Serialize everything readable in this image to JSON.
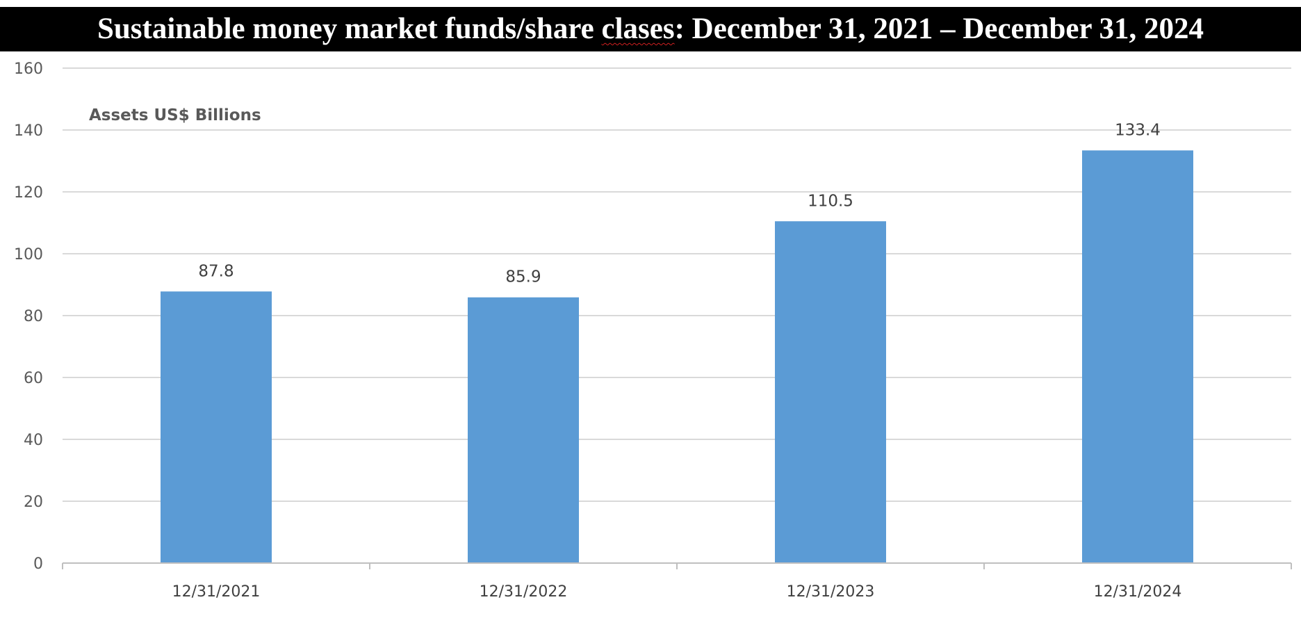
{
  "chart_data": {
    "type": "bar",
    "title_parts": [
      "Sustainable money market funds/share ",
      "clases",
      ":  December 31, 2021 – December 31, 2024"
    ],
    "unit_label": "Assets US$ Billions",
    "categories": [
      "12/31/2021",
      "12/31/2022",
      "12/31/2023",
      "12/31/2024"
    ],
    "values": [
      87.8,
      85.9,
      110.5,
      133.4
    ],
    "data_labels": [
      "87.8",
      "85.9",
      "110.5",
      "133.4"
    ],
    "ylim": [
      0,
      160
    ],
    "yticks": [
      0,
      20,
      40,
      60,
      80,
      100,
      120,
      140,
      160
    ],
    "grid": true,
    "legend": "none",
    "bar_color": "#5b9bd5",
    "grid_color": "#d9d9d9"
  }
}
